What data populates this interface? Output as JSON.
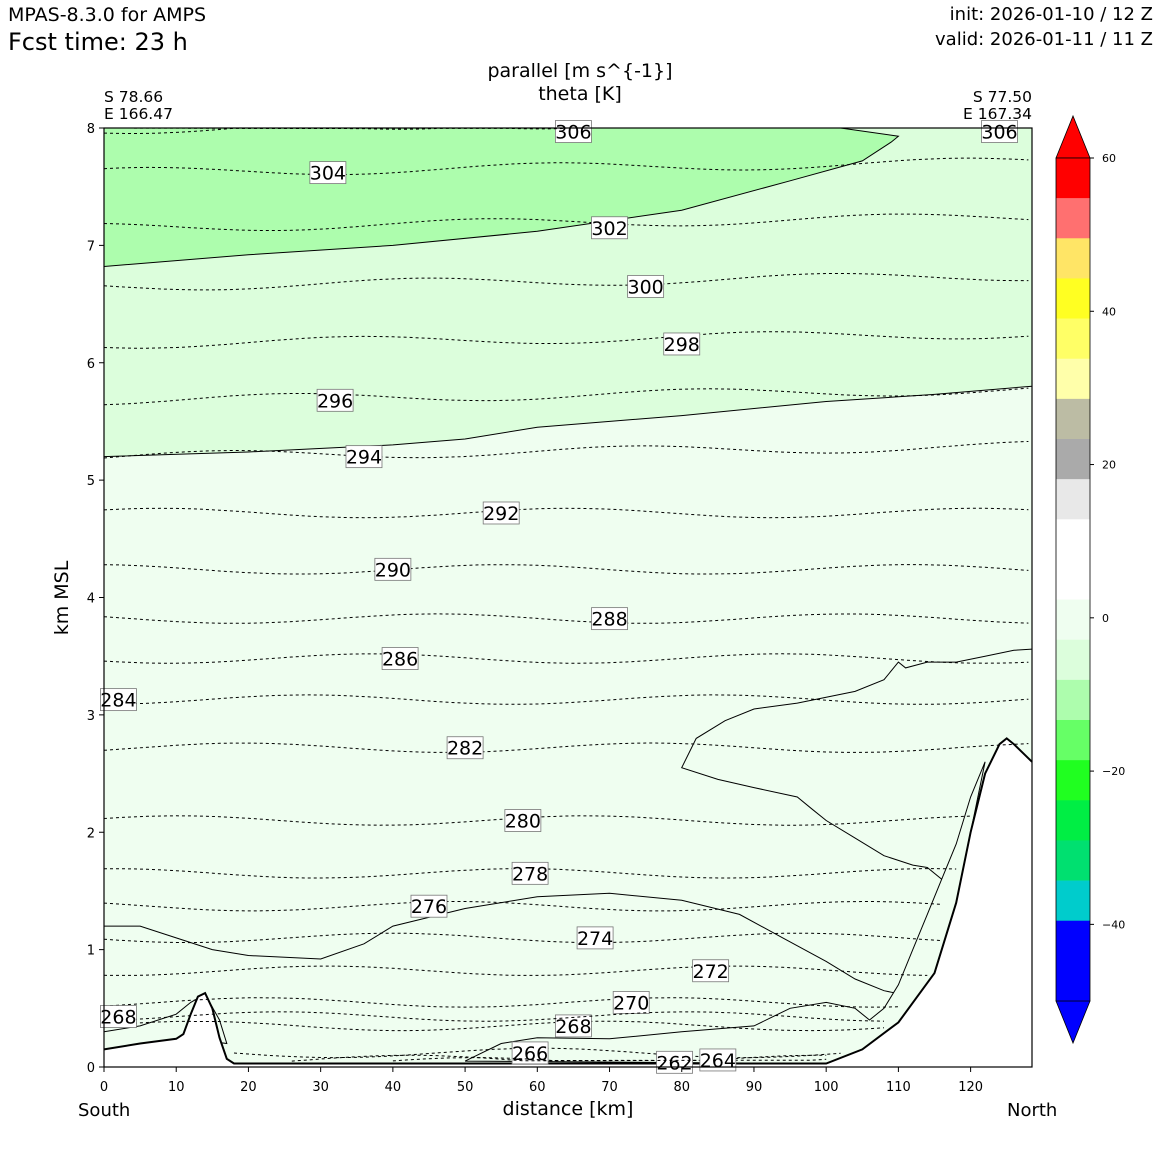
{
  "header": {
    "model": "MPAS-8.3.0 for AMPS",
    "fcst": "Fcst time:   23 h",
    "init": "init: 2026-01-10 / 12 Z",
    "valid": "valid: 2026-01-11 / 11 Z"
  },
  "title": {
    "line1": "parallel [m s^{-1}]",
    "line2": "theta [K]"
  },
  "endpoints": {
    "left_lat": "S 78.66",
    "left_lon": "E 166.47",
    "right_lat": "S 77.50",
    "right_lon": "E 167.34",
    "left_label": "South",
    "right_label": "North"
  },
  "colors": {
    "fill_light": "#effef0",
    "fill_mid": "#dcfedc",
    "fill_green": "#adfdad",
    "terrain": "#ffffff"
  },
  "chart_data": {
    "type": "contour",
    "xlabel": "distance [km]",
    "ylabel": "km MSL",
    "xlim": [
      0,
      128.5
    ],
    "ylim": [
      0,
      8
    ],
    "xticks": [
      "0",
      "10",
      "20",
      "30",
      "40",
      "50",
      "60",
      "70",
      "80",
      "90",
      "100",
      "110",
      "120"
    ],
    "yticks": [
      "0",
      "1",
      "2",
      "3",
      "4",
      "5",
      "6",
      "7",
      "8"
    ],
    "theta_levels": [
      {
        "label": "306",
        "z": 8.0,
        "label_x": 65
      },
      {
        "label": "304",
        "z": 7.62,
        "label_x": 31
      },
      {
        "label": "302",
        "z": 7.15,
        "label_x": 70
      },
      {
        "label": "300",
        "z": 6.65,
        "label_x": 75
      },
      {
        "label": "298",
        "z": 6.16,
        "label_x": 80
      },
      {
        "label": "296",
        "z": 5.68,
        "label_x": 32
      },
      {
        "label": "294",
        "z": 5.2,
        "label_x": 36
      },
      {
        "label": "292",
        "z": 4.72,
        "label_x": 55
      },
      {
        "label": "290",
        "z": 4.24,
        "label_x": 40
      },
      {
        "label": "288",
        "z": 3.82,
        "label_x": 70
      },
      {
        "label": "286",
        "z": 3.48,
        "label_x": 41
      },
      {
        "label": "284",
        "z": 3.13,
        "label_x": 2
      },
      {
        "label": "282",
        "z": 2.72,
        "label_x": 50
      },
      {
        "label": "280",
        "z": 2.1,
        "label_x": 58
      },
      {
        "label": "278",
        "z": 1.65,
        "label_x": 59
      },
      {
        "label": "276",
        "z": 1.37,
        "label_x": 45
      },
      {
        "label": "274",
        "z": 1.1,
        "label_x": 68
      },
      {
        "label": "272",
        "z": 0.82,
        "label_x": 84
      },
      {
        "label": "270",
        "z": 0.55,
        "label_x": 73
      },
      {
        "label": "268",
        "z": 0.35,
        "label_x": 65
      },
      {
        "label": "266",
        "z": 0.12,
        "label_x": 59
      },
      {
        "label": "262",
        "z": 0.04,
        "label_x": 79
      },
      {
        "label": "264",
        "z": 0.06,
        "label_x": 85
      },
      {
        "label": "306",
        "z": 7.99,
        "label_x": 124
      },
      {
        "label": "268",
        "z": 0.43,
        "label_x": 2
      }
    ],
    "colorbar": {
      "ticks": [
        "60",
        "40",
        "20",
        "0",
        "−20",
        "−40"
      ],
      "tick_values": [
        60,
        40,
        20,
        0,
        -20,
        -40
      ],
      "range": [
        -50,
        60
      ],
      "colors": [
        "#0000ff",
        "#0000ff",
        "#0000ff",
        "#00cccc",
        "#00e070",
        "#00ee44",
        "#20ff20",
        "#66ff66",
        "#adfdad",
        "#dcfedc",
        "#effef0",
        "#ffffff",
        "#ffffff",
        "#e8e8e8",
        "#aaaaaa",
        "#bcbca4",
        "#ffffaa",
        "#ffff66",
        "#ffff22",
        "#ffe566",
        "#ff7070",
        "#ff0000",
        "#ff0000"
      ]
    },
    "terrain": [
      [
        0,
        0.15
      ],
      [
        5,
        0.2
      ],
      [
        10,
        0.24
      ],
      [
        11,
        0.28
      ],
      [
        12,
        0.45
      ],
      [
        13,
        0.6
      ],
      [
        14,
        0.63
      ],
      [
        15,
        0.5
      ],
      [
        16,
        0.25
      ],
      [
        17,
        0.07
      ],
      [
        18,
        0.03
      ],
      [
        30,
        0.03
      ],
      [
        60,
        0.03
      ],
      [
        100,
        0.03
      ],
      [
        105,
        0.15
      ],
      [
        110,
        0.38
      ],
      [
        115,
        0.8
      ],
      [
        118,
        1.4
      ],
      [
        120,
        2.0
      ],
      [
        122,
        2.5
      ],
      [
        124,
        2.75
      ],
      [
        125,
        2.8
      ],
      [
        126,
        2.75
      ],
      [
        128.5,
        2.6
      ]
    ]
  }
}
